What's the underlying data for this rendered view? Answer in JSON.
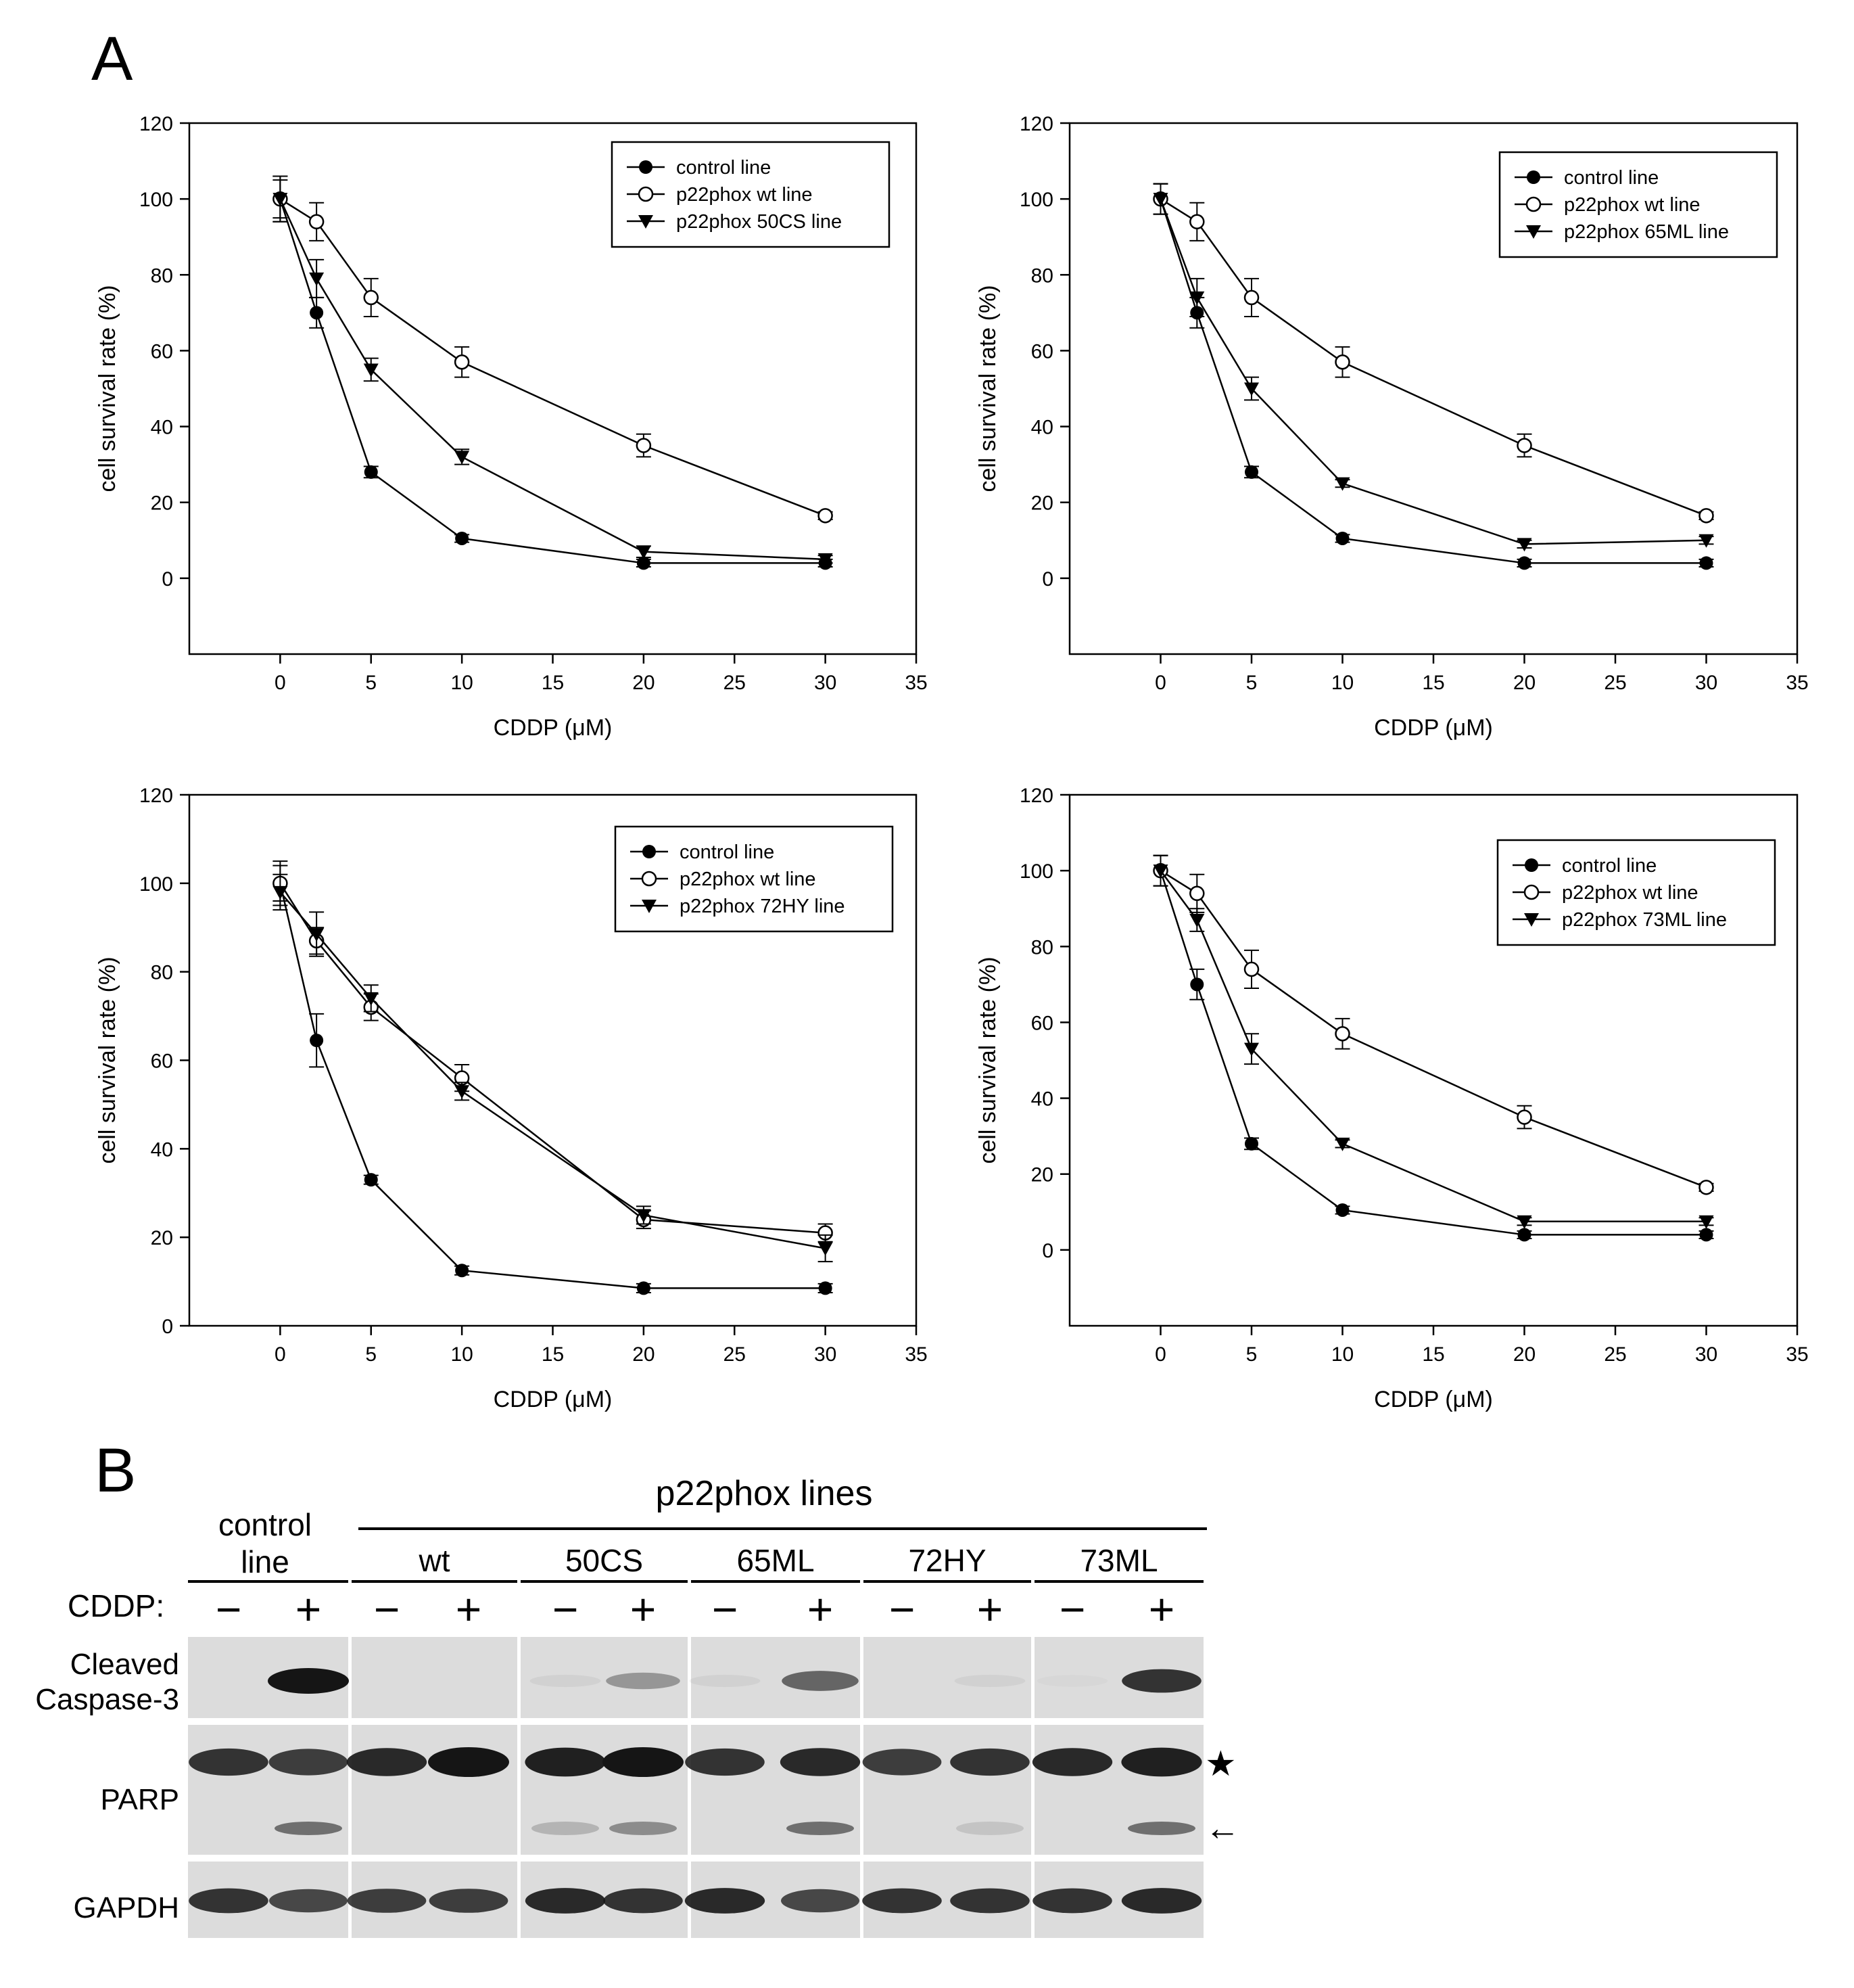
{
  "panel_labels": {
    "a": "A",
    "b": "B"
  },
  "colors": {
    "ink": "#000000",
    "background": "#ffffff",
    "blot_bg": "#dcdcdc",
    "band": "#151515"
  },
  "chart_data": [
    {
      "type": "line",
      "title": "",
      "xlabel": "CDDP (μM)",
      "ylabel": "cell survival rate (%)",
      "xlim": [
        -5,
        35
      ],
      "ylim": [
        -20,
        120
      ],
      "xticks": [
        0,
        5,
        10,
        15,
        20,
        25,
        30,
        35
      ],
      "yticks": [
        0,
        20,
        40,
        60,
        80,
        100,
        120
      ],
      "legend_position": "top-right",
      "x": [
        0,
        2,
        5,
        10,
        20,
        30
      ],
      "series": [
        {
          "name": "control line",
          "marker": "filled-circle",
          "values": [
            100,
            70,
            28,
            10.5,
            4,
            4
          ],
          "errors": [
            6,
            4,
            1.5,
            1,
            1,
            1
          ]
        },
        {
          "name": "p22phox wt line",
          "marker": "open-circle",
          "values": [
            100,
            94,
            74,
            57,
            35,
            16.5
          ],
          "errors": [
            6,
            5,
            5,
            4,
            3,
            1
          ]
        },
        {
          "name": "p22phox 50CS line",
          "marker": "filled-triangle-down",
          "values": [
            100,
            79,
            55,
            32,
            7,
            5
          ],
          "errors": [
            5,
            5,
            3,
            2,
            1.5,
            1
          ]
        }
      ]
    },
    {
      "type": "line",
      "title": "",
      "xlabel": "CDDP (μM)",
      "ylabel": "cell survival rate (%)",
      "xlim": [
        -5,
        35
      ],
      "ylim": [
        -20,
        120
      ],
      "xticks": [
        0,
        5,
        10,
        15,
        20,
        25,
        30,
        35
      ],
      "yticks": [
        0,
        20,
        40,
        60,
        80,
        100,
        120
      ],
      "legend_position": "top-right",
      "x": [
        0,
        2,
        5,
        10,
        20,
        30
      ],
      "series": [
        {
          "name": "control line",
          "marker": "filled-circle",
          "values": [
            100,
            70,
            28,
            10.5,
            4,
            4
          ],
          "errors": [
            4,
            4,
            1.5,
            1,
            1,
            1
          ]
        },
        {
          "name": "p22phox wt line",
          "marker": "open-circle",
          "values": [
            100,
            94,
            74,
            57,
            35,
            16.5
          ],
          "errors": [
            4,
            5,
            5,
            4,
            3,
            1
          ]
        },
        {
          "name": "p22phox 65ML line",
          "marker": "filled-triangle-down",
          "values": [
            100,
            74,
            50,
            25,
            9,
            10
          ],
          "errors": [
            4,
            5,
            3,
            1,
            1,
            1
          ]
        }
      ]
    },
    {
      "type": "line",
      "title": "",
      "xlabel": "CDDP (μM)",
      "ylabel": "cell survival rate (%)",
      "xlim": [
        -5,
        35
      ],
      "ylim": [
        0,
        120
      ],
      "xticks": [
        0,
        5,
        10,
        15,
        20,
        25,
        30,
        35
      ],
      "yticks": [
        0,
        20,
        40,
        60,
        80,
        100,
        120
      ],
      "legend_position": "top-right",
      "x": [
        0,
        2,
        5,
        10,
        20,
        30
      ],
      "series": [
        {
          "name": "control line",
          "marker": "filled-circle",
          "values": [
            100,
            64.5,
            33,
            12.5,
            8.5,
            8.5
          ],
          "errors": [
            5,
            6,
            1,
            1,
            1,
            1
          ]
        },
        {
          "name": "p22phox wt line",
          "marker": "open-circle",
          "values": [
            100,
            87,
            72,
            56,
            24,
            21
          ],
          "errors": [
            4,
            3,
            3,
            3,
            2,
            2
          ]
        },
        {
          "name": "p22phox 72HY line",
          "marker": "filled-triangle-down",
          "values": [
            98,
            88.5,
            74,
            53,
            25,
            17.5
          ],
          "errors": [
            4,
            5,
            3,
            2,
            2,
            3
          ]
        }
      ]
    },
    {
      "type": "line",
      "title": "",
      "xlabel": "CDDP (μM)",
      "ylabel": "cell survival rate (%)",
      "xlim": [
        -5,
        35
      ],
      "ylim": [
        -20,
        120
      ],
      "xticks": [
        0,
        5,
        10,
        15,
        20,
        25,
        30,
        35
      ],
      "yticks": [
        0,
        20,
        40,
        60,
        80,
        100,
        120
      ],
      "legend_position": "top-right",
      "x": [
        0,
        2,
        5,
        10,
        20,
        30
      ],
      "series": [
        {
          "name": "control line",
          "marker": "filled-circle",
          "values": [
            100,
            70,
            28,
            10.5,
            4,
            4
          ],
          "errors": [
            4,
            4,
            1.5,
            1,
            1,
            1
          ]
        },
        {
          "name": "p22phox wt line",
          "marker": "open-circle",
          "values": [
            100,
            94,
            74,
            57,
            35,
            16.5
          ],
          "errors": [
            4,
            5,
            5,
            4,
            3,
            1
          ]
        },
        {
          "name": "p22phox 73ML line",
          "marker": "filled-triangle-down",
          "values": [
            100,
            87,
            53,
            28,
            7.5,
            7.5
          ],
          "errors": [
            4,
            3,
            4,
            1,
            1,
            1
          ]
        }
      ]
    }
  ],
  "blot": {
    "control_header": [
      "control",
      "line"
    ],
    "group_header": "p22phox lines",
    "groups": [
      "wt",
      "50CS",
      "65ML",
      "72HY",
      "73ML"
    ],
    "treatment_label": "CDDP:",
    "treatment_states": [
      "−",
      "+",
      "−",
      "+",
      "−",
      "+",
      "−",
      "+",
      "−",
      "+",
      "−",
      "+"
    ],
    "rows": [
      {
        "label": [
          "Cleaved",
          "Caspase-3"
        ],
        "band_intensity": [
          0,
          1.0,
          0,
          0,
          0.05,
          0.35,
          0.05,
          0.6,
          0,
          0.05,
          0.02,
          0.85
        ]
      },
      {
        "label": [
          "PARP"
        ],
        "band_intensity": [
          0.85,
          0.8,
          0.9,
          1.0,
          0.95,
          1.0,
          0.85,
          0.9,
          0.8,
          0.85,
          0.9,
          0.95
        ],
        "cleaved_band_intensity": [
          0,
          0.55,
          0,
          0,
          0.2,
          0.4,
          0,
          0.55,
          0,
          0.12,
          0,
          0.55
        ]
      },
      {
        "label": [
          "GAPDH"
        ],
        "band_intensity": [
          0.85,
          0.75,
          0.8,
          0.8,
          0.9,
          0.85,
          0.9,
          0.75,
          0.85,
          0.85,
          0.85,
          0.9
        ]
      }
    ],
    "markers": {
      "star": "★",
      "arrow": "←"
    }
  }
}
